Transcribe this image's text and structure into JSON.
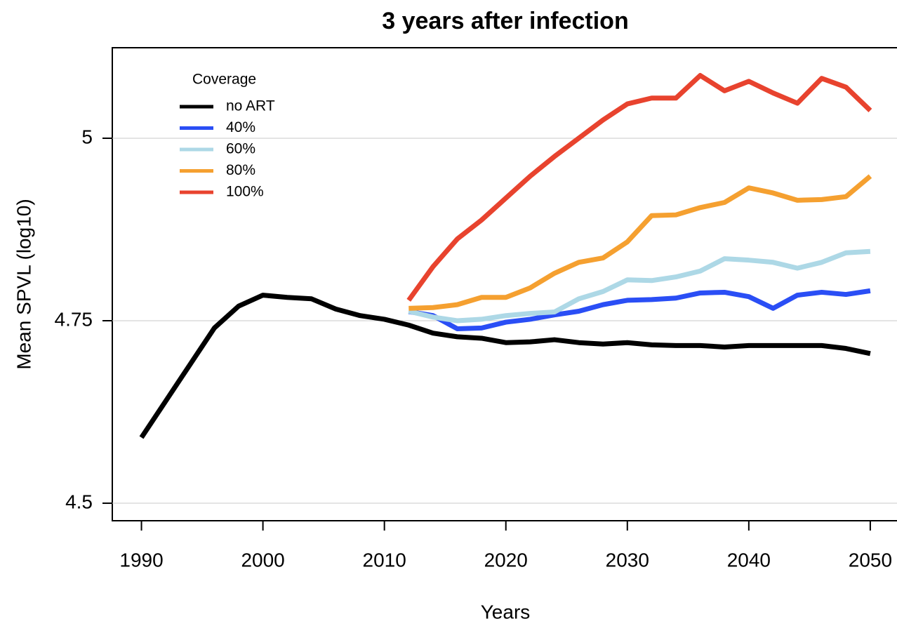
{
  "chart_data": {
    "type": "line",
    "title": "3 years after infection",
    "x_label": "Years",
    "y_label": "Mean SPVL (log10)",
    "xlim": [
      1987.6,
      2052.2
    ],
    "ylim": [
      4.476,
      5.124
    ],
    "xticks": [
      1990,
      2000,
      2010,
      2020,
      2030,
      2040,
      2050
    ],
    "yticks": [
      4.5,
      4.75,
      5
    ],
    "grid": true,
    "legend": "top-left",
    "legend_title": "Coverage",
    "series": [
      {
        "name": "no ART",
        "color": "#000000",
        "x": [
          1990,
          1992,
          1994,
          1996,
          1998,
          2000,
          2002,
          2004,
          2006,
          2008,
          2010,
          2012,
          2014,
          2016,
          2018,
          2020,
          2022,
          2024,
          2026,
          2028,
          2030,
          2032,
          2034,
          2036,
          2038,
          2040,
          2042,
          2044,
          2046,
          2048,
          2050
        ],
        "values": [
          4.59,
          4.64,
          4.69,
          4.74,
          4.77,
          4.785,
          4.782,
          4.78,
          4.766,
          4.757,
          4.752,
          4.744,
          4.733,
          4.728,
          4.726,
          4.72,
          4.721,
          4.724,
          4.72,
          4.718,
          4.72,
          4.717,
          4.716,
          4.716,
          4.714,
          4.716,
          4.716,
          4.716,
          4.716,
          4.712,
          4.705
        ]
      },
      {
        "name": "40%",
        "color": "#2a4ef5",
        "x": [
          2012,
          2014,
          2016,
          2018,
          2020,
          2022,
          2024,
          2026,
          2028,
          2030,
          2032,
          2034,
          2036,
          2038,
          2040,
          2042,
          2044,
          2046,
          2048,
          2050
        ],
        "values": [
          4.7625,
          4.757,
          4.739,
          4.74,
          4.748,
          4.752,
          4.758,
          4.763,
          4.772,
          4.778,
          4.779,
          4.781,
          4.788,
          4.789,
          4.783,
          4.767,
          4.785,
          4.789,
          4.786,
          4.791
        ]
      },
      {
        "name": "60%",
        "color": "#add8e6",
        "x": [
          2012,
          2014,
          2016,
          2018,
          2020,
          2022,
          2024,
          2026,
          2028,
          2030,
          2032,
          2034,
          2036,
          2038,
          2040,
          2042,
          2044,
          2046,
          2048,
          2050
        ],
        "values": [
          4.763,
          4.755,
          4.75,
          4.752,
          4.757,
          4.76,
          4.762,
          4.78,
          4.79,
          4.806,
          4.805,
          4.81,
          4.818,
          4.835,
          4.833,
          4.83,
          4.822,
          4.83,
          4.843,
          4.845
        ]
      },
      {
        "name": "80%",
        "color": "#f5a030",
        "x": [
          2012,
          2014,
          2016,
          2018,
          2020,
          2022,
          2024,
          2026,
          2028,
          2030,
          2032,
          2034,
          2036,
          2038,
          2040,
          2042,
          2044,
          2046,
          2048,
          2050
        ],
        "values": [
          4.767,
          4.768,
          4.772,
          4.782,
          4.782,
          4.795,
          4.815,
          4.83,
          4.836,
          4.858,
          4.894,
          4.895,
          4.905,
          4.912,
          4.932,
          4.925,
          4.915,
          4.916,
          4.92,
          4.948
        ]
      },
      {
        "name": "100%",
        "color": "#e8432e",
        "x": [
          2012,
          2014,
          2016,
          2018,
          2020,
          2022,
          2024,
          2026,
          2028,
          2030,
          2032,
          2034,
          2036,
          2038,
          2040,
          2042,
          2044,
          2046,
          2048,
          2050
        ],
        "values": [
          4.778,
          4.824,
          4.862,
          4.888,
          4.918,
          4.948,
          4.975,
          5.0,
          5.025,
          5.047,
          5.055,
          5.055,
          5.086,
          5.065,
          5.078,
          5.062,
          5.048,
          5.082,
          5.07,
          5.038
        ]
      }
    ]
  }
}
